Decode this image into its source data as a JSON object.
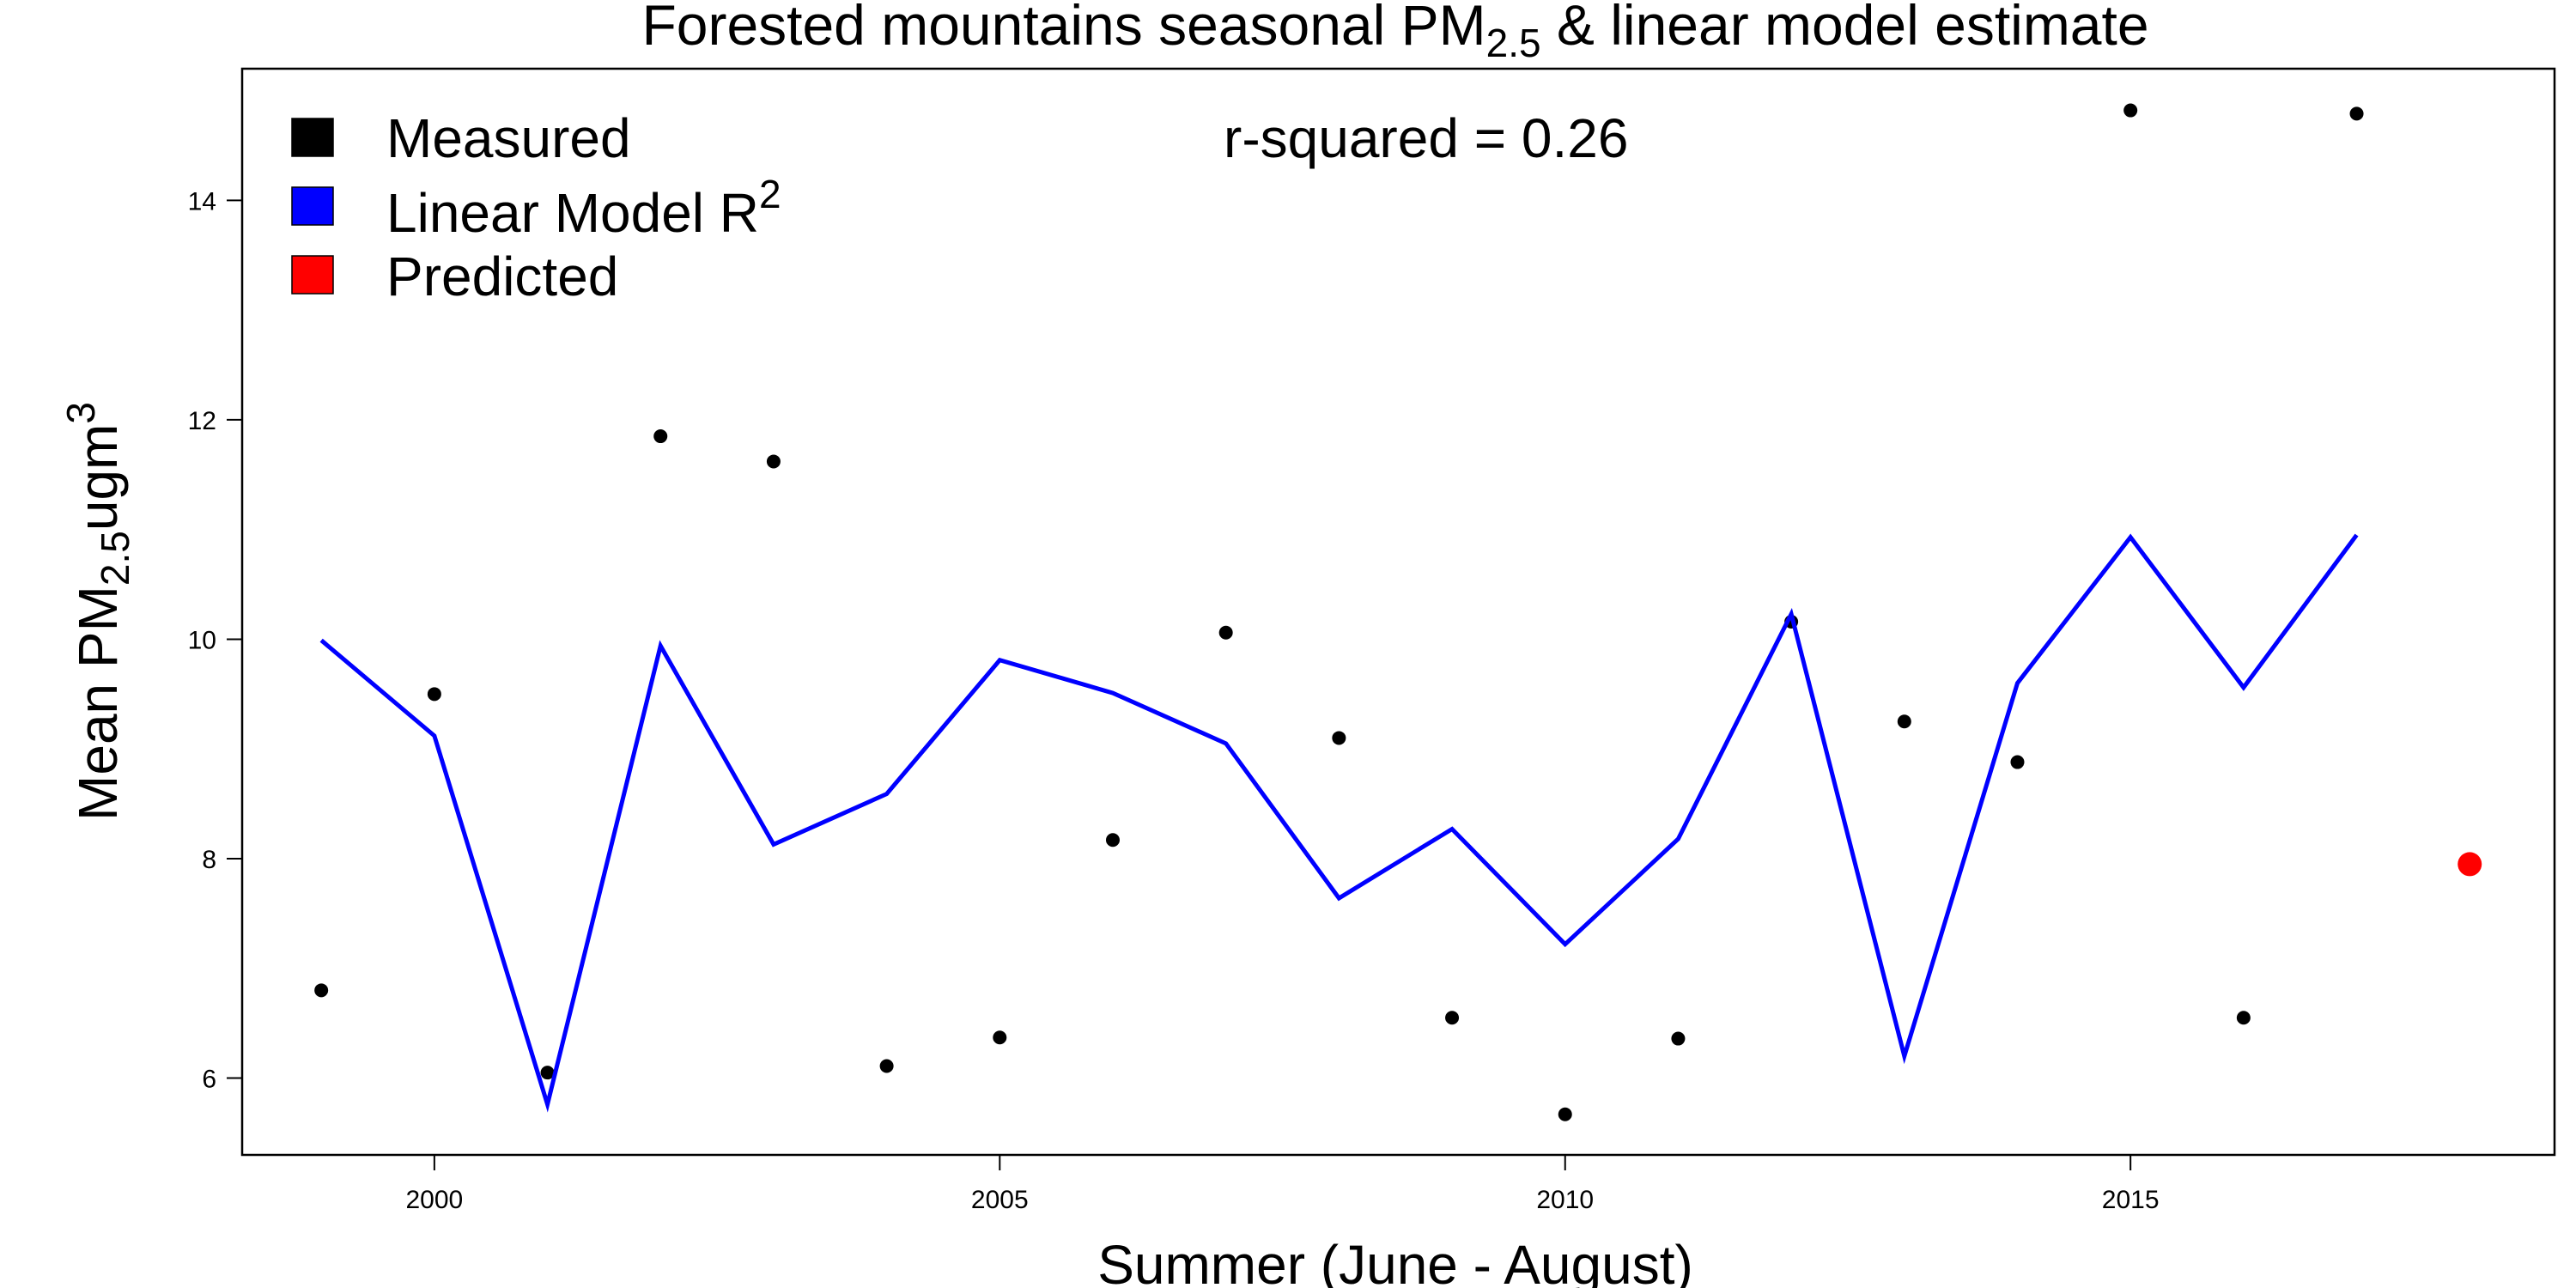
{
  "chart_data": {
    "type": "line",
    "title_main": "Forested mountains seasonal PM",
    "title_sub": "2.5",
    "title_rest": " & linear model estimate",
    "xlabel": "Summer (June - August)",
    "ylabel_main": "Mean PM",
    "ylabel_sub": "2.5",
    "ylabel_unit": "ugm",
    "ylabel_sup": "3",
    "annotation": "r-squared = 0.26",
    "xlim": [
      1998.3,
      2018.75
    ],
    "ylim": [
      5.3,
      15.2
    ],
    "x_ticks": [
      2000,
      2005,
      2010,
      2015
    ],
    "x_tick_labels": [
      "2000",
      "2005",
      "2010",
      "2015"
    ],
    "y_ticks": [
      6,
      8,
      10,
      12,
      14
    ],
    "y_tick_labels": [
      "6",
      "8",
      "10",
      "12",
      "14"
    ],
    "legend": {
      "placement": "top-left",
      "items": [
        {
          "label": "Measured",
          "color": "#000000"
        },
        {
          "label_main": "Linear Model R",
          "label_sup": "2",
          "color": "#0000ff"
        },
        {
          "label": "Predicted",
          "color": "#ff0000"
        }
      ]
    },
    "series": [
      {
        "name": "Measured",
        "kind": "points",
        "color": "#000000",
        "x": [
          1999,
          2000,
          2001,
          2002,
          2003,
          2004,
          2005,
          2006,
          2007,
          2008,
          2009,
          2010,
          2011,
          2012,
          2013,
          2014,
          2015,
          2016,
          2017
        ],
        "y": [
          6.8,
          9.5,
          6.05,
          11.85,
          11.62,
          6.11,
          6.37,
          8.17,
          10.06,
          9.1,
          6.55,
          5.67,
          6.36,
          10.16,
          9.25,
          8.88,
          14.82,
          6.55,
          14.79
        ]
      },
      {
        "name": "Linear Model R2",
        "kind": "line",
        "color": "#0000ff",
        "x": [
          1999,
          2000,
          2001,
          2002,
          2003,
          2004,
          2005,
          2006,
          2007,
          2008,
          2009,
          2010,
          2011,
          2012,
          2013,
          2014,
          2015,
          2016,
          2017
        ],
        "y": [
          9.99,
          9.12,
          5.76,
          9.94,
          8.13,
          8.59,
          9.81,
          9.51,
          9.05,
          7.64,
          8.27,
          7.22,
          8.18,
          10.23,
          6.2,
          9.6,
          10.93,
          9.56,
          10.95
        ]
      },
      {
        "name": "Predicted",
        "kind": "points",
        "color": "#ff0000",
        "x": [
          2018
        ],
        "y": [
          7.95
        ]
      }
    ]
  }
}
